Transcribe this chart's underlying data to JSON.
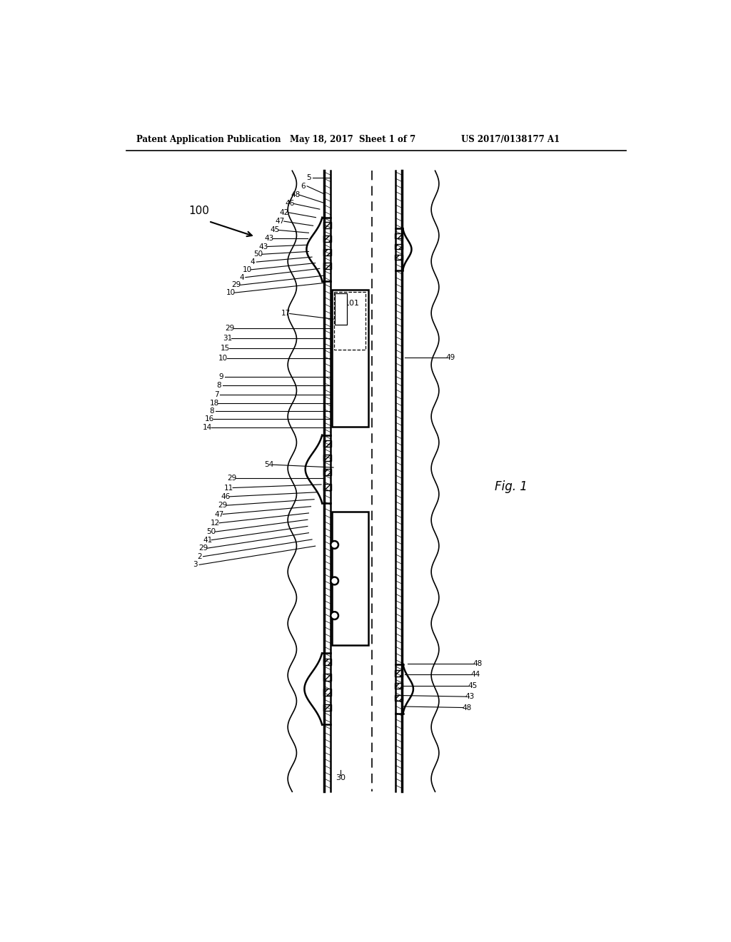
{
  "header_left": "Patent Application Publication",
  "header_mid": "May 18, 2017  Sheet 1 of 7",
  "header_right": "US 2017/0138177 A1",
  "fig_label": "Fig. 1",
  "system_label": "100",
  "bg_color": "#ffffff",
  "lc": "#000000"
}
